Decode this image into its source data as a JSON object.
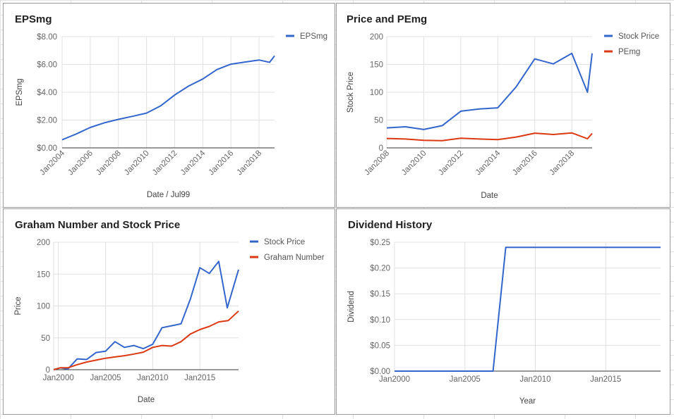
{
  "chart_data": [
    {
      "type": "line",
      "title": "EPSmg",
      "xlabel": "Date / Jul99",
      "ylabel": "EPSmg",
      "x_ticks": [
        "Jan2004",
        "Jan2006",
        "Jan2008",
        "Jan2010",
        "Jan2012",
        "Jan2014",
        "Jan2016",
        "Jan2018"
      ],
      "y_ticks": [
        "$0.00",
        "$2.00",
        "$4.00",
        "$6.00",
        "$8.00"
      ],
      "xlim": [
        2004,
        2019.1
      ],
      "ylim": [
        0,
        8
      ],
      "grid": true,
      "legend": "right",
      "series": [
        {
          "name": "EPSmg",
          "color": "#3366cc",
          "points": [
            [
              2004.0,
              0.58
            ],
            [
              2005.0,
              1.0
            ],
            [
              2006.0,
              1.47
            ],
            [
              2007.0,
              1.8
            ],
            [
              2008.0,
              2.05
            ],
            [
              2009.0,
              2.27
            ],
            [
              2010.0,
              2.5
            ],
            [
              2011.0,
              3.02
            ],
            [
              2012.0,
              3.8
            ],
            [
              2013.0,
              4.45
            ],
            [
              2014.0,
              4.95
            ],
            [
              2015.0,
              5.63
            ],
            [
              2016.0,
              6.02
            ],
            [
              2017.0,
              6.17
            ],
            [
              2018.0,
              6.32
            ],
            [
              2018.75,
              6.15
            ],
            [
              2019.1,
              6.62
            ]
          ]
        }
      ]
    },
    {
      "type": "line",
      "title": "Price and PEmg",
      "xlabel": "Date",
      "ylabel": "Stock Price",
      "x_ticks": [
        "Jan2008",
        "Jan2010",
        "Jan2012",
        "Jan2014",
        "Jan2016",
        "Jan2018"
      ],
      "y_ticks": [
        "0",
        "50",
        "100",
        "150",
        "200"
      ],
      "xlim": [
        2008,
        2019.1
      ],
      "ylim": [
        0,
        200
      ],
      "grid": true,
      "legend": "right",
      "series": [
        {
          "name": "Stock Price",
          "color": "#3366cc",
          "points": [
            [
              2008.0,
              36
            ],
            [
              2009.0,
              38
            ],
            [
              2010.0,
              33
            ],
            [
              2011.0,
              40
            ],
            [
              2012.0,
              66
            ],
            [
              2013.0,
              70
            ],
            [
              2014.0,
              72
            ],
            [
              2015.0,
              110
            ],
            [
              2016.0,
              160
            ],
            [
              2017.0,
              151
            ],
            [
              2018.0,
              170
            ],
            [
              2018.85,
              100
            ],
            [
              2019.1,
              170
            ]
          ]
        },
        {
          "name": "PEmg",
          "color": "#dc3912",
          "points": [
            [
              2008.0,
              17
            ],
            [
              2009.0,
              16
            ],
            [
              2010.0,
              13.5
            ],
            [
              2011.0,
              13
            ],
            [
              2012.0,
              17.5
            ],
            [
              2013.0,
              16
            ],
            [
              2014.0,
              15
            ],
            [
              2015.0,
              19.5
            ],
            [
              2016.0,
              26.5
            ],
            [
              2017.0,
              24
            ],
            [
              2018.0,
              27
            ],
            [
              2018.85,
              16.5
            ],
            [
              2019.1,
              26
            ]
          ]
        }
      ]
    },
    {
      "type": "line",
      "title": "Graham Number and Stock Price",
      "xlabel": "Date",
      "ylabel": "Price",
      "x_ticks": [
        "Jan2000",
        "Jan2005",
        "Jan2010",
        "Jan2015"
      ],
      "y_ticks": [
        "0",
        "50",
        "100",
        "150",
        "200"
      ],
      "xlim": [
        1999.5,
        2019.1
      ],
      "ylim": [
        0,
        200
      ],
      "grid": true,
      "legend": "right",
      "series": [
        {
          "name": "Stock Price",
          "color": "#3366cc",
          "points": [
            [
              1999.5,
              0
            ],
            [
              2000.2,
              3
            ],
            [
              2001.0,
              1
            ],
            [
              2002.0,
              17
            ],
            [
              2003.0,
              16
            ],
            [
              2004.0,
              27
            ],
            [
              2005.0,
              29
            ],
            [
              2006.0,
              44
            ],
            [
              2007.0,
              35
            ],
            [
              2008.0,
              38
            ],
            [
              2009.0,
              33
            ],
            [
              2010.0,
              40
            ],
            [
              2011.0,
              66
            ],
            [
              2012.0,
              69
            ],
            [
              2013.0,
              72
            ],
            [
              2014.0,
              111
            ],
            [
              2015.0,
              160
            ],
            [
              2016.0,
              151
            ],
            [
              2017.0,
              170
            ],
            [
              2017.9,
              97
            ],
            [
              2019.1,
              157
            ]
          ]
        },
        {
          "name": "Graham Number",
          "color": "#dc3912",
          "points": [
            [
              1999.5,
              0
            ],
            [
              2000.2,
              3
            ],
            [
              2001.0,
              3
            ],
            [
              2002.0,
              8
            ],
            [
              2003.0,
              12
            ],
            [
              2004.0,
              15
            ],
            [
              2005.0,
              18
            ],
            [
              2006.0,
              20
            ],
            [
              2007.0,
              22
            ],
            [
              2008.0,
              24.5
            ],
            [
              2009.0,
              27.5
            ],
            [
              2010.0,
              35
            ],
            [
              2011.0,
              38
            ],
            [
              2012.0,
              37
            ],
            [
              2013.0,
              44
            ],
            [
              2014.0,
              56
            ],
            [
              2015.0,
              63
            ],
            [
              2016.0,
              68
            ],
            [
              2017.0,
              75
            ],
            [
              2018.0,
              77
            ],
            [
              2019.1,
              92
            ]
          ]
        }
      ]
    },
    {
      "type": "line",
      "title": "Dividend History",
      "xlabel": "Year",
      "ylabel": "Dividend",
      "x_ticks": [
        "Jan2000",
        "Jan2005",
        "Jan2010",
        "Jan2015"
      ],
      "y_ticks": [
        "$0.00",
        "$0.05",
        "$0.10",
        "$0.15",
        "$0.20",
        "$0.25"
      ],
      "xlim": [
        2000,
        2018.9
      ],
      "ylim": [
        0,
        0.25
      ],
      "grid": true,
      "legend": "none",
      "series": [
        {
          "name": "Dividend",
          "color": "#3366cc",
          "points": [
            [
              2000.0,
              0
            ],
            [
              2007.0,
              0
            ],
            [
              2007.9,
              0.24
            ],
            [
              2018.9,
              0.24
            ]
          ]
        }
      ]
    }
  ]
}
